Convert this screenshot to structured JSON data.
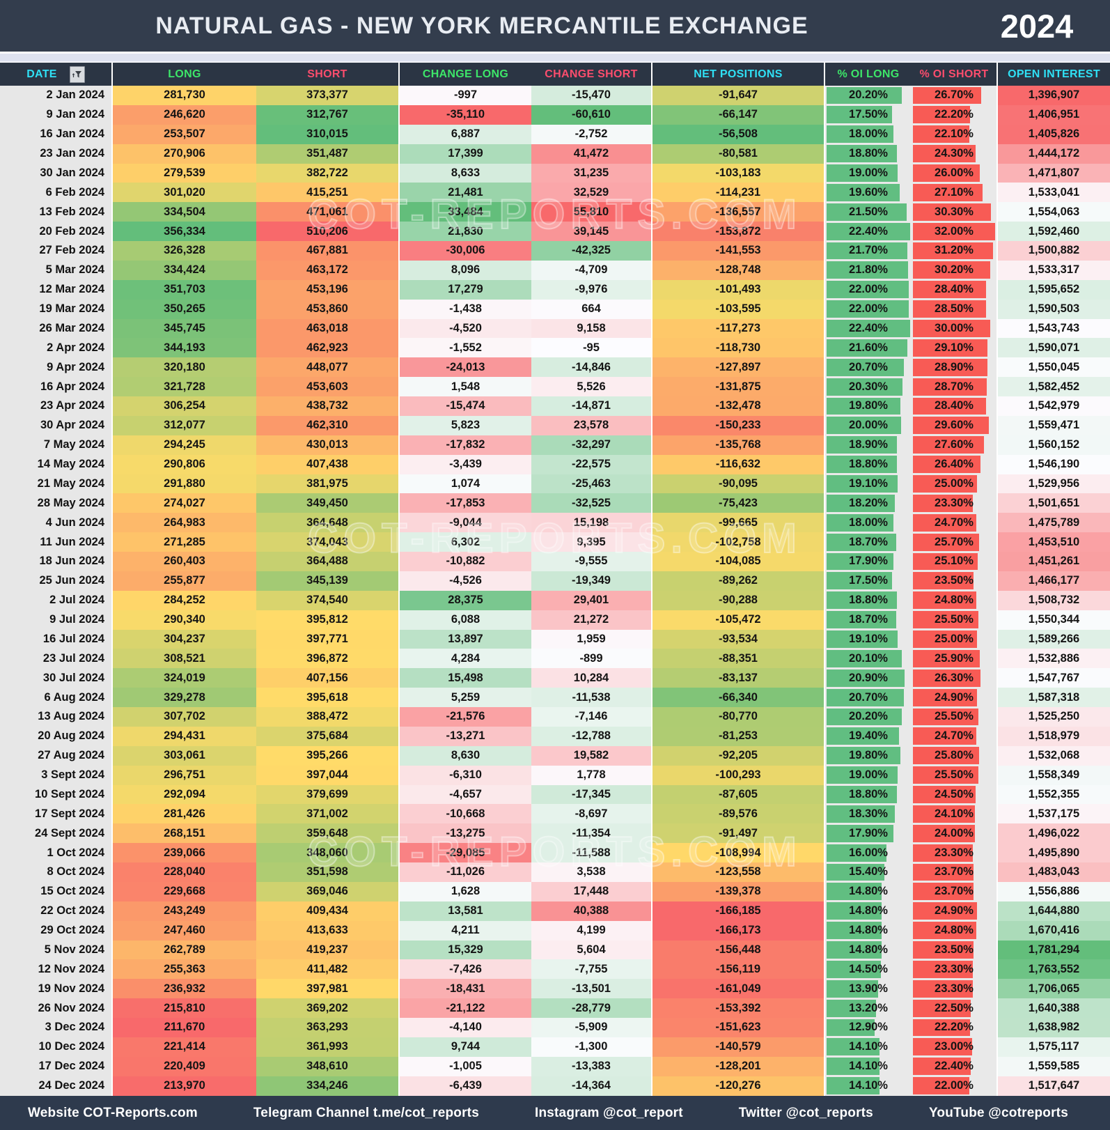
{
  "header": {
    "title": "NATURAL GAS - NEW YORK MERCANTILE EXCHANGE",
    "year": "2024"
  },
  "watermark": "COT-REPORTS.COM",
  "columns": [
    {
      "key": "date",
      "label": "DATE",
      "header_color": "cyan",
      "render": "date"
    },
    {
      "key": "long",
      "label": "LONG",
      "header_color": "green",
      "render": "heat",
      "heat": "ryg"
    },
    {
      "key": "short",
      "label": "SHORT",
      "header_color": "red",
      "render": "heat",
      "heat": "ryg_inv"
    },
    {
      "key": "chg_long",
      "label": "CHANGE LONG",
      "header_color": "green",
      "render": "heat",
      "heat": "rwg_zero"
    },
    {
      "key": "chg_short",
      "label": "CHANGE SHORT",
      "header_color": "red",
      "render": "heat",
      "heat": "rwg_zero_inv"
    },
    {
      "key": "net",
      "label": "NET POSITIONS",
      "header_color": "cyan",
      "render": "heat",
      "heat": "ryg"
    },
    {
      "key": "oi_long",
      "label": "% OI LONG",
      "header_color": "green",
      "render": "bar",
      "bar_color": "green"
    },
    {
      "key": "oi_short",
      "label": "% OI SHORT",
      "header_color": "red",
      "render": "bar",
      "bar_color": "red"
    },
    {
      "key": "oi",
      "label": "OPEN INTEREST",
      "header_color": "cyan",
      "render": "heat",
      "heat": "rwg_med"
    }
  ],
  "colors": {
    "heat_red": "#F8696B",
    "heat_yellow": "#FFDB69",
    "heat_green": "#63BE7B",
    "heat_white": "#FCFCFF",
    "bar_green": "#61BE81",
    "bar_red": "#F85B55"
  },
  "footer": {
    "items": [
      "Website COT-Reports.com",
      "Telegram Channel t.me/cot_reports",
      "Instagram @cot_report",
      "Twitter @cot_reports",
      "YouTube @cotreports"
    ]
  },
  "chart_data": {
    "type": "table",
    "title": "NATURAL GAS - NEW YORK MERCANTILE EXCHANGE 2024",
    "column_labels": [
      "DATE",
      "LONG",
      "SHORT",
      "CHANGE LONG",
      "CHANGE SHORT",
      "NET POSITIONS",
      "% OI LONG",
      "% OI SHORT",
      "OPEN INTEREST"
    ],
    "rows": [
      [
        "2 Jan 2024",
        281730,
        373377,
        -997,
        -15470,
        -91647,
        20.2,
        26.7,
        1396907
      ],
      [
        "9 Jan 2024",
        246620,
        312767,
        -35110,
        -60610,
        -66147,
        17.5,
        22.2,
        1406951
      ],
      [
        "16 Jan 2024",
        253507,
        310015,
        6887,
        -2752,
        -56508,
        18.0,
        22.1,
        1405826
      ],
      [
        "23 Jan 2024",
        270906,
        351487,
        17399,
        41472,
        -80581,
        18.8,
        24.3,
        1444172
      ],
      [
        "30 Jan 2024",
        279539,
        382722,
        8633,
        31235,
        -103183,
        19.0,
        26.0,
        1471807
      ],
      [
        "6 Feb 2024",
        301020,
        415251,
        21481,
        32529,
        -114231,
        19.6,
        27.1,
        1533041
      ],
      [
        "13 Feb 2024",
        334504,
        471061,
        33484,
        55810,
        -136557,
        21.5,
        30.3,
        1554063
      ],
      [
        "20 Feb 2024",
        356334,
        510206,
        21830,
        39145,
        -153872,
        22.4,
        32.0,
        1592460
      ],
      [
        "27 Feb 2024",
        326328,
        467881,
        -30006,
        -42325,
        -141553,
        21.7,
        31.2,
        1500882
      ],
      [
        "5 Mar 2024",
        334424,
        463172,
        8096,
        -4709,
        -128748,
        21.8,
        30.2,
        1533317
      ],
      [
        "12 Mar 2024",
        351703,
        453196,
        17279,
        -9976,
        -101493,
        22.0,
        28.4,
        1595652
      ],
      [
        "19 Mar 2024",
        350265,
        453860,
        -1438,
        664,
        -103595,
        22.0,
        28.5,
        1590503
      ],
      [
        "26 Mar 2024",
        345745,
        463018,
        -4520,
        9158,
        -117273,
        22.4,
        30.0,
        1543743
      ],
      [
        "2 Apr 2024",
        344193,
        462923,
        -1552,
        -95,
        -118730,
        21.6,
        29.1,
        1590071
      ],
      [
        "9 Apr 2024",
        320180,
        448077,
        -24013,
        -14846,
        -127897,
        20.7,
        28.9,
        1550045
      ],
      [
        "16 Apr 2024",
        321728,
        453603,
        1548,
        5526,
        -131875,
        20.3,
        28.7,
        1582452
      ],
      [
        "23 Apr 2024",
        306254,
        438732,
        -15474,
        -14871,
        -132478,
        19.8,
        28.4,
        1542979
      ],
      [
        "30 Apr 2024",
        312077,
        462310,
        5823,
        23578,
        -150233,
        20.0,
        29.6,
        1559471
      ],
      [
        "7 May 2024",
        294245,
        430013,
        -17832,
        -32297,
        -135768,
        18.9,
        27.6,
        1560152
      ],
      [
        "14 May 2024",
        290806,
        407438,
        -3439,
        -22575,
        -116632,
        18.8,
        26.4,
        1546190
      ],
      [
        "21 May 2024",
        291880,
        381975,
        1074,
        -25463,
        -90095,
        19.1,
        25.0,
        1529956
      ],
      [
        "28 May 2024",
        274027,
        349450,
        -17853,
        -32525,
        -75423,
        18.2,
        23.3,
        1501651
      ],
      [
        "4 Jun 2024",
        264983,
        364648,
        -9044,
        15198,
        -99665,
        18.0,
        24.7,
        1475789
      ],
      [
        "11 Jun 2024",
        271285,
        374043,
        6302,
        9395,
        -102758,
        18.7,
        25.7,
        1453510
      ],
      [
        "18 Jun 2024",
        260403,
        364488,
        -10882,
        -9555,
        -104085,
        17.9,
        25.1,
        1451261
      ],
      [
        "25 Jun 2024",
        255877,
        345139,
        -4526,
        -19349,
        -89262,
        17.5,
        23.5,
        1466177
      ],
      [
        "2 Jul 2024",
        284252,
        374540,
        28375,
        29401,
        -90288,
        18.8,
        24.8,
        1508732
      ],
      [
        "9 Jul 2024",
        290340,
        395812,
        6088,
        21272,
        -105472,
        18.7,
        25.5,
        1550344
      ],
      [
        "16 Jul 2024",
        304237,
        397771,
        13897,
        1959,
        -93534,
        19.1,
        25.0,
        1589266
      ],
      [
        "23 Jul 2024",
        308521,
        396872,
        4284,
        -899,
        -88351,
        20.1,
        25.9,
        1532886
      ],
      [
        "30 Jul 2024",
        324019,
        407156,
        15498,
        10284,
        -83137,
        20.9,
        26.3,
        1547767
      ],
      [
        "6 Aug 2024",
        329278,
        395618,
        5259,
        -11538,
        -66340,
        20.7,
        24.9,
        1587318
      ],
      [
        "13 Aug 2024",
        307702,
        388472,
        -21576,
        -7146,
        -80770,
        20.2,
        25.5,
        1525250
      ],
      [
        "20 Aug 2024",
        294431,
        375684,
        -13271,
        -12788,
        -81253,
        19.4,
        24.7,
        1518979
      ],
      [
        "27 Aug 2024",
        303061,
        395266,
        8630,
        19582,
        -92205,
        19.8,
        25.8,
        1532068
      ],
      [
        "3 Sept 2024",
        296751,
        397044,
        -6310,
        1778,
        -100293,
        19.0,
        25.5,
        1558349
      ],
      [
        "10 Sept 2024",
        292094,
        379699,
        -4657,
        -17345,
        -87605,
        18.8,
        24.5,
        1552355
      ],
      [
        "17 Sept 2024",
        281426,
        371002,
        -10668,
        -8697,
        -89576,
        18.3,
        24.1,
        1537175
      ],
      [
        "24 Sept 2024",
        268151,
        359648,
        -13275,
        -11354,
        -91497,
        17.9,
        24.0,
        1496022
      ],
      [
        "1 Oct 2024",
        239066,
        348060,
        -29085,
        -11588,
        -108994,
        16.0,
        23.3,
        1495890
      ],
      [
        "8 Oct 2024",
        228040,
        351598,
        -11026,
        3538,
        -123558,
        15.4,
        23.7,
        1483043
      ],
      [
        "15 Oct 2024",
        229668,
        369046,
        1628,
        17448,
        -139378,
        14.8,
        23.7,
        1556886
      ],
      [
        "22 Oct 2024",
        243249,
        409434,
        13581,
        40388,
        -166185,
        14.8,
        24.9,
        1644880
      ],
      [
        "29 Oct 2024",
        247460,
        413633,
        4211,
        4199,
        -166173,
        14.8,
        24.8,
        1670416
      ],
      [
        "5 Nov 2024",
        262789,
        419237,
        15329,
        5604,
        -156448,
        14.8,
        23.5,
        1781294
      ],
      [
        "12 Nov 2024",
        255363,
        411482,
        -7426,
        -7755,
        -156119,
        14.5,
        23.3,
        1763552
      ],
      [
        "19 Nov 2024",
        236932,
        397981,
        -18431,
        -13501,
        -161049,
        13.9,
        23.3,
        1706065
      ],
      [
        "26 Nov 2024",
        215810,
        369202,
        -21122,
        -28779,
        -153392,
        13.2,
        22.5,
        1640388
      ],
      [
        "3 Dec 2024",
        211670,
        363293,
        -4140,
        -5909,
        -151623,
        12.9,
        22.2,
        1638982
      ],
      [
        "10 Dec 2024",
        221414,
        361993,
        9744,
        -1300,
        -140579,
        14.1,
        23.0,
        1575117
      ],
      [
        "17 Dec 2024",
        220409,
        348610,
        -1005,
        -13383,
        -128201,
        14.1,
        22.4,
        1559585
      ],
      [
        "24 Dec 2024",
        213970,
        334246,
        -6439,
        -14364,
        -120276,
        14.1,
        22.0,
        1517647
      ]
    ]
  }
}
